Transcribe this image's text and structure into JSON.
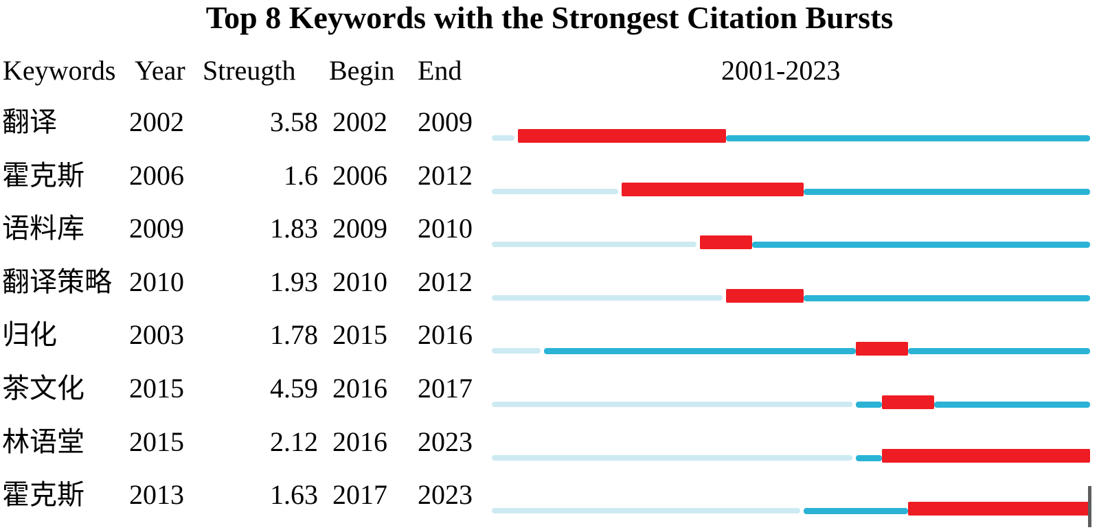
{
  "title": "Top 8 Keywords with the Strongest Citation Bursts",
  "header": {
    "keywords": "Keywords",
    "year": "Year",
    "strength": "Streugth",
    "begin": "Begin",
    "end": "End",
    "range": "2001-2023"
  },
  "colors": {
    "burst": "#ee1c23",
    "active": "#2bb3d5",
    "pre": "#cdeaf2",
    "marker": "#5e5e5e",
    "text": "#000000"
  },
  "chart_data": {
    "type": "table",
    "title": "Top 8 Keywords with the Strongest Citation Bursts",
    "columns": [
      "Keywords",
      "Year",
      "Streugth",
      "Begin",
      "End",
      "2001-2023"
    ],
    "timeline": {
      "start": 2001,
      "end": 2023
    },
    "bar_encoding": {
      "burst_period": "thick red bar from Begin year to End year",
      "active_period": "teal line from first-appearance Year to 2023",
      "pre_appearance": "light blue line from 2001 until first-appearance Year"
    },
    "rows": [
      {
        "keyword": "翻译",
        "year": 2002,
        "strength": 3.58,
        "strength_label": "3.58",
        "begin": 2002,
        "end": 2009
      },
      {
        "keyword": "霍克斯",
        "year": 2006,
        "strength": 1.6,
        "strength_label": "1.6",
        "begin": 2006,
        "end": 2012
      },
      {
        "keyword": "语料库",
        "year": 2009,
        "strength": 1.83,
        "strength_label": "1.83",
        "begin": 2009,
        "end": 2010
      },
      {
        "keyword": "翻译策略",
        "year": 2010,
        "strength": 1.93,
        "strength_label": "1.93",
        "begin": 2010,
        "end": 2012
      },
      {
        "keyword": "归化",
        "year": 2003,
        "strength": 1.78,
        "strength_label": "1.78",
        "begin": 2015,
        "end": 2016
      },
      {
        "keyword": "茶文化",
        "year": 2015,
        "strength": 4.59,
        "strength_label": "4.59",
        "begin": 2016,
        "end": 2017
      },
      {
        "keyword": "林语堂",
        "year": 2015,
        "strength": 2.12,
        "strength_label": "2.12",
        "begin": 2016,
        "end": 2023
      },
      {
        "keyword": "霍克斯",
        "year": 2013,
        "strength": 1.63,
        "strength_label": "1.63",
        "begin": 2017,
        "end": 2023
      }
    ]
  }
}
